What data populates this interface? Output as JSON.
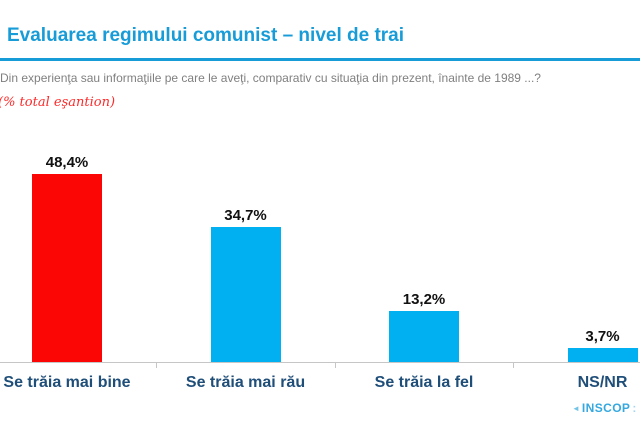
{
  "header": {
    "title": "Evaluarea regimului comunist – nivel de trai",
    "question": "Din experienţa sau informaţiile pe care le aveţi, comparativ cu situaţia din prezent, înainte de 1989 ...?",
    "sample_note": "(% total eşantion)"
  },
  "chart_data": {
    "type": "bar",
    "categories": [
      "Se trăia mai bine",
      "Se trăia mai rău",
      "Se trăia la fel",
      "NS/NR"
    ],
    "values": [
      48.4,
      34.7,
      13.2,
      3.7
    ],
    "value_labels": [
      "48,4%",
      "34,7%",
      "13,2%",
      "3,7%"
    ],
    "bar_colors": [
      "#FB0505",
      "#00B0F0",
      "#00B0F0",
      "#00B0F0"
    ],
    "title": "Evaluarea regimului comunist – nivel de trai",
    "subtitle": "Din experienţa sau informaţiile pe care le aveţi, comparativ cu situaţia din prezent, înainte de 1989 ...?",
    "xlabel": "",
    "ylabel": "% total eşantion",
    "ylim": [
      0,
      50
    ],
    "grid": false,
    "legend": false,
    "value_label_position": "above-bar",
    "axis_line": "bottom-only"
  },
  "colors": {
    "title_blue": "#189CD8",
    "bar_blue": "#00B0F0",
    "bar_red": "#FB0505",
    "category_label_navy": "#1F4E79",
    "question_gray": "#808080",
    "note_red": "#FF2A2A",
    "axis_gray": "#C6C6C6",
    "logo_blue": "#35A8E0"
  },
  "footer": {
    "logo_text": "INSCOP",
    "logo_cut_text": ":"
  }
}
